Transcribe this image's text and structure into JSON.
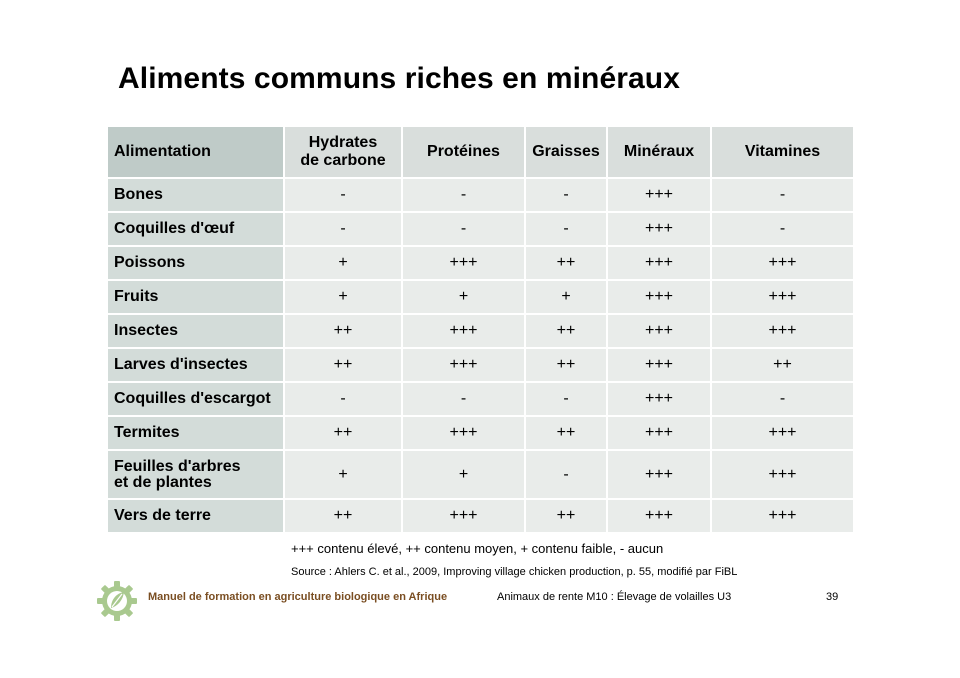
{
  "title": "Aliments communs riches en minéraux",
  "table": {
    "headers": [
      "Alimentation",
      "Hydrates\nde carbone",
      "Protéines",
      "Graisses",
      "Minéraux",
      "Vitamines"
    ],
    "rows": [
      {
        "name": "Bones",
        "values": [
          "-",
          "-",
          "-",
          "+++",
          "-"
        ]
      },
      {
        "name": "Coquilles d'œuf",
        "values": [
          "-",
          "-",
          "-",
          "+++",
          "-"
        ]
      },
      {
        "name": "Poissons",
        "values": [
          "+",
          "+++",
          "++",
          "+++",
          "+++"
        ]
      },
      {
        "name": "Fruits",
        "values": [
          "+",
          "+",
          "+",
          "+++",
          "+++"
        ]
      },
      {
        "name": "Insectes",
        "values": [
          "++",
          "+++",
          "++",
          "+++",
          "+++"
        ]
      },
      {
        "name": "Larves d'insectes",
        "values": [
          "++",
          "+++",
          "++",
          "+++",
          "++"
        ]
      },
      {
        "name": "Coquilles d'escargot",
        "values": [
          "-",
          "-",
          "-",
          "+++",
          "-"
        ]
      },
      {
        "name": "Termites",
        "values": [
          "++",
          "+++",
          "++",
          "+++",
          "+++"
        ]
      },
      {
        "name": "Feuilles d'arbres\net de plantes",
        "values": [
          "+",
          "+",
          "-",
          "+++",
          "+++"
        ]
      },
      {
        "name": "Vers de terre",
        "values": [
          "++",
          "+++",
          "++",
          "+++",
          "+++"
        ]
      }
    ]
  },
  "legend": "+++ contenu élevé, ++ contenu moyen, + contenu faible, - aucun",
  "source": "Source : Ahlers C. et al., 2009, Improving village chicken production, p. 55, modifié par FiBL",
  "footer": {
    "left": "Manuel de formation en agriculture biologique en Afrique",
    "middle": "Animaux de rente M10 : Élevage de volailles U3",
    "page": "39"
  },
  "colors": {
    "header_bg": "#d9dedc",
    "first_col_bg": "#d3dcd9",
    "cell_bg": "#e9ecea",
    "footer_brand": "#7a4e22",
    "logo_green": "#a9c98f"
  },
  "icons": {
    "logo": "gear-leaf-logo-icon"
  }
}
